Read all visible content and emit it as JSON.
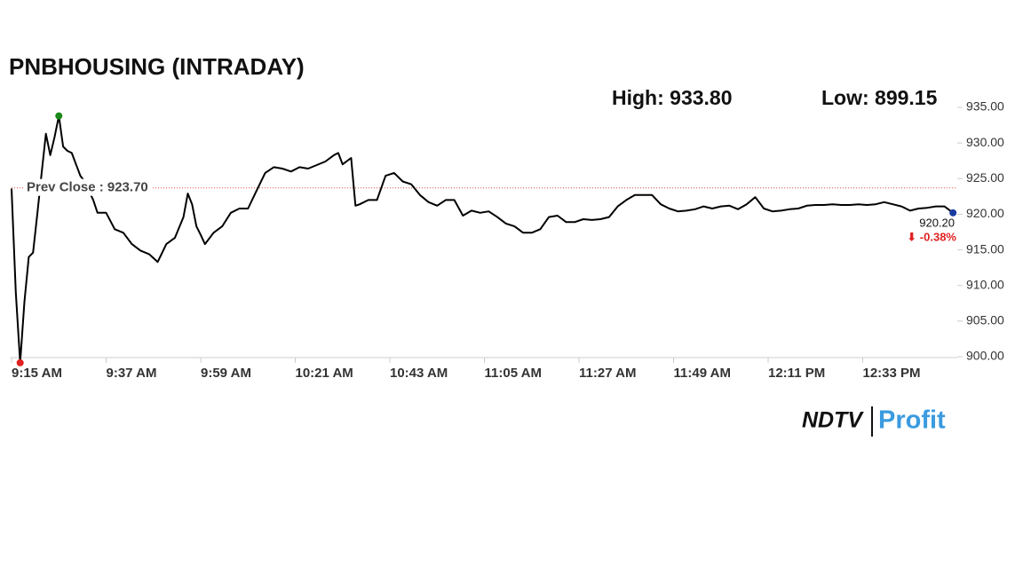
{
  "chart_data": {
    "type": "line",
    "title": "PNBHOUSING (INTRADAY)",
    "color": "#000000",
    "x": [
      "9:15 AM",
      "9:16 AM",
      "9:17 AM",
      "9:18 AM",
      "9:19 AM",
      "9:20 AM",
      "9:21 AM",
      "9:22 AM",
      "9:23 AM",
      "9:24 AM",
      "9:25 AM",
      "9:26 AM",
      "9:27 AM",
      "9:28 AM",
      "9:29 AM",
      "9:30 AM",
      "9:31 AM",
      "9:32 AM",
      "9:33 AM",
      "9:34 AM",
      "9:35 AM",
      "9:37 AM",
      "9:39 AM",
      "9:41 AM",
      "9:43 AM",
      "9:45 AM",
      "9:47 AM",
      "9:49 AM",
      "9:51 AM",
      "9:53 AM",
      "9:55 AM",
      "9:56 AM",
      "9:57 AM",
      "9:58 AM",
      "9:59 AM",
      "10:00 AM",
      "10:02 AM",
      "10:04 AM",
      "10:06 AM",
      "10:08 AM",
      "10:10 AM",
      "10:12 AM",
      "10:14 AM",
      "10:16 AM",
      "10:18 AM",
      "10:20 AM",
      "10:22 AM",
      "10:24 AM",
      "10:26 AM",
      "10:28 AM",
      "10:30 AM",
      "10:31 AM",
      "10:32 AM",
      "10:34 AM",
      "10:35 AM",
      "10:36 AM",
      "10:38 AM",
      "10:40 AM",
      "10:42 AM",
      "10:44 AM",
      "10:46 AM",
      "10:48 AM",
      "10:50 AM",
      "10:52 AM",
      "10:54 AM",
      "10:56 AM",
      "10:58 AM",
      "11:00 AM",
      "11:02 AM",
      "11:04 AM",
      "11:06 AM",
      "11:08 AM",
      "11:10 AM",
      "11:12 AM",
      "11:14 AM",
      "11:16 AM",
      "11:18 AM",
      "11:20 AM",
      "11:22 AM",
      "11:24 AM",
      "11:26 AM",
      "11:28 AM",
      "11:30 AM",
      "11:32 AM",
      "11:34 AM",
      "11:36 AM",
      "11:38 AM",
      "11:40 AM",
      "11:42 AM",
      "11:44 AM",
      "11:46 AM",
      "11:48 AM",
      "11:50 AM",
      "11:52 AM",
      "11:54 AM",
      "11:56 AM",
      "11:58 AM",
      "12:00 PM",
      "12:02 PM",
      "12:04 PM",
      "12:06 PM",
      "12:08 PM",
      "12:10 PM",
      "12:12 PM",
      "12:14 PM",
      "12:16 PM",
      "12:18 PM",
      "12:20 PM",
      "12:22 PM",
      "12:24 PM",
      "12:26 PM",
      "12:28 PM",
      "12:30 PM",
      "12:32 PM",
      "12:34 PM",
      "12:36 PM",
      "12:38 PM",
      "12:40 PM",
      "12:42 PM",
      "12:44 PM",
      "12:46 PM",
      "12:48 PM",
      "12:50 PM",
      "12:52 PM",
      "12:54 PM"
    ],
    "values": [
      923.6,
      909,
      899.15,
      907.7,
      914,
      914.6,
      920,
      925.8,
      931.3,
      928.3,
      930.8,
      933.8,
      929.5,
      928.9,
      928.6,
      927,
      925.4,
      924.6,
      923.3,
      922,
      920.2,
      920.2,
      917.9,
      917.4,
      915.8,
      914.9,
      914.4,
      913.3,
      915.8,
      916.7,
      919.6,
      922.9,
      921.4,
      918.3,
      917.1,
      915.8,
      917.4,
      918.3,
      920.2,
      920.8,
      920.8,
      923.3,
      925.8,
      926.6,
      926.4,
      926,
      926.6,
      926.4,
      926.9,
      927.4,
      928.3,
      928.6,
      927,
      927.9,
      921.2,
      921.4,
      922,
      922,
      925.4,
      925.8,
      924.6,
      924.2,
      922.7,
      921.7,
      921.2,
      922,
      922,
      919.8,
      920.5,
      920.2,
      920.4,
      919.6,
      918.7,
      918.3,
      917.4,
      917.4,
      917.9,
      919.6,
      919.8,
      918.9,
      918.9,
      919.3,
      919.2,
      919.3,
      919.6,
      921.1,
      922,
      922.7,
      922.7,
      922.7,
      921.4,
      920.8,
      920.4,
      920.5,
      920.7,
      921.1,
      920.8,
      921.1,
      921.2,
      920.7,
      921.4,
      922.4,
      920.8,
      920.4,
      920.5,
      920.7,
      920.8,
      921.2,
      921.3,
      921.3,
      921.4,
      921.3,
      921.3,
      921.4,
      921.3,
      921.4,
      921.7,
      921.4,
      921.1,
      920.5,
      920.8,
      920.9,
      921.1,
      921.1,
      920.2
    ],
    "xlim": [
      "9:15 AM",
      "12:55 PM"
    ],
    "xticks": [
      "9:15 AM",
      "9:37 AM",
      "9:59 AM",
      "10:21 AM",
      "10:43 AM",
      "11:05 AM",
      "11:27 AM",
      "11:49 AM",
      "12:11 PM",
      "12:33 PM"
    ],
    "ylim": [
      900,
      935
    ],
    "yticks": [
      {
        "value": 900,
        "label": "900.00"
      },
      {
        "value": 905,
        "label": "905.00"
      },
      {
        "value": 910,
        "label": "910.00"
      },
      {
        "value": 915,
        "label": "915.00"
      },
      {
        "value": 920,
        "label": "920.00"
      },
      {
        "value": 925,
        "label": "925.00"
      },
      {
        "value": 930,
        "label": "930.00"
      },
      {
        "value": 935,
        "label": "935.00"
      }
    ],
    "high": {
      "value": 933.8,
      "label": "High: 933.80"
    },
    "low": {
      "value": 899.15,
      "label": "Low: 899.15"
    },
    "prev_close": {
      "value": 923.7,
      "label": "Prev Close : 923.70"
    },
    "last": {
      "value": 920.2,
      "label": "920.20"
    },
    "change": "⬇ -0.38%",
    "logo": {
      "left": "NDTV",
      "right": "Profit"
    }
  }
}
